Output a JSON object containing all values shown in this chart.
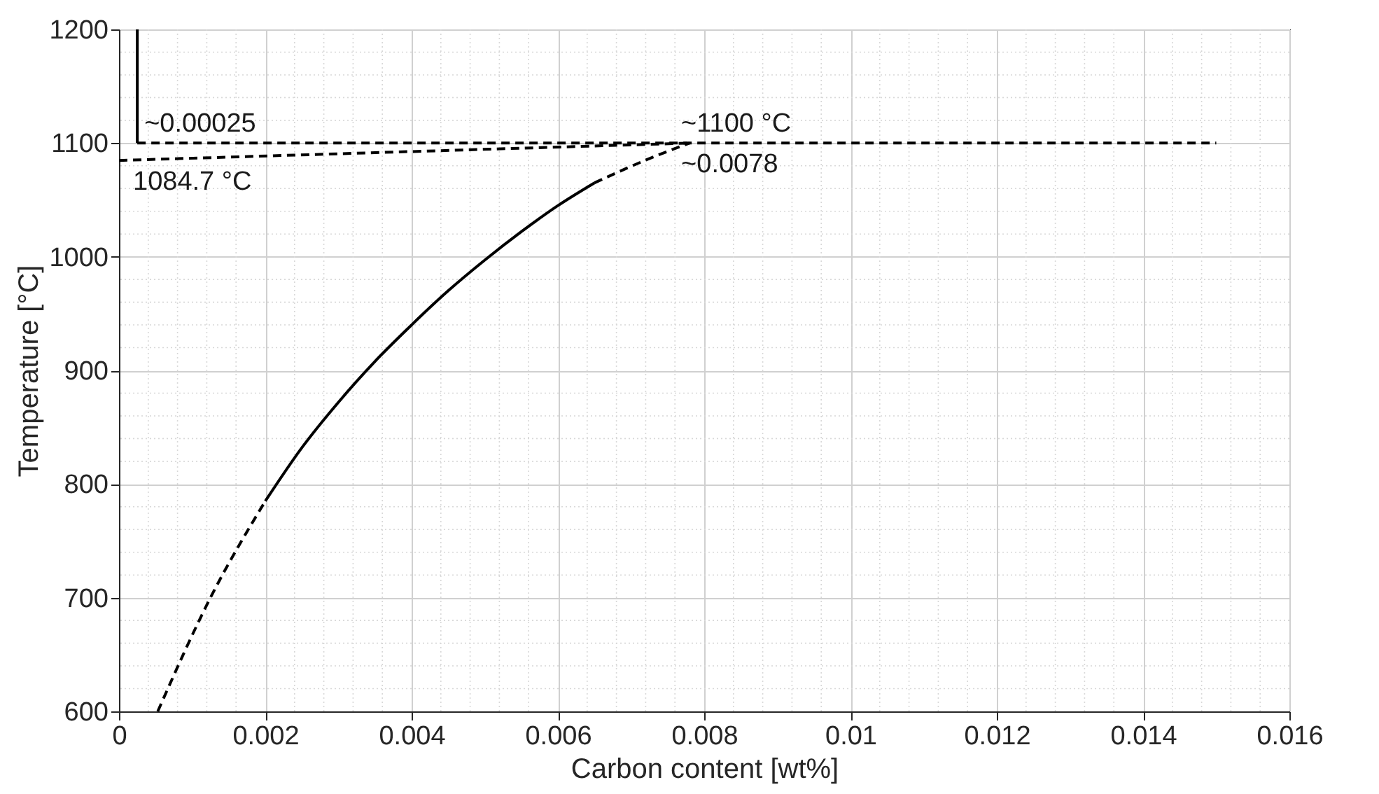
{
  "chart_data": {
    "type": "line",
    "xlabel": "Carbon content [wt%]",
    "ylabel": "Temperature [°C]",
    "xlim": [
      0,
      0.016
    ],
    "ylim": [
      600,
      1200
    ],
    "xticks": [
      0,
      0.002,
      0.004,
      0.006,
      0.008,
      0.01,
      0.012,
      0.014,
      0.016
    ],
    "yticks": [
      600,
      700,
      800,
      900,
      1000,
      1100,
      1200
    ],
    "grid": true,
    "marker": "none",
    "series": [
      {
        "color": "#000000",
        "line_style": "solid",
        "x": [
          0.00025,
          0.00025
        ],
        "values": [
          1100,
          1200
        ]
      },
      {
        "color": "#000000",
        "line_style": "dashed",
        "x": [
          0.00025,
          0.015
        ],
        "values": [
          1100,
          1100
        ]
      },
      {
        "color": "#000000",
        "line_style": "dashed",
        "x": [
          0,
          0.0078
        ],
        "values": [
          1084.7,
          1100
        ]
      },
      {
        "color": "#000000",
        "line_style": "dashed",
        "x": [
          0.00053,
          0.00125,
          0.002
        ],
        "values": [
          600,
          700,
          785
        ]
      },
      {
        "color": "#000000",
        "line_style": "solid",
        "x": [
          0.002,
          0.0025,
          0.003,
          0.0035,
          0.004,
          0.0045,
          0.005,
          0.0055,
          0.006,
          0.0065
        ],
        "values": [
          785,
          832,
          872,
          908,
          940,
          970,
          997,
          1022,
          1045,
          1065
        ]
      },
      {
        "color": "#000000",
        "line_style": "dashed",
        "x": [
          0.0065,
          0.0072,
          0.0078
        ],
        "values": [
          1065,
          1085,
          1100
        ]
      }
    ],
    "annotations": [
      {
        "text": "~0.00025",
        "x": 0.00025,
        "y": 1100
      },
      {
        "text": "1084.7 °C",
        "x": 0,
        "y": 1084.7
      },
      {
        "text": "~1100 °C",
        "x": 0.0078,
        "y": 1100
      },
      {
        "text": "~0.0078",
        "x": 0.0078,
        "y": 1100
      }
    ]
  }
}
